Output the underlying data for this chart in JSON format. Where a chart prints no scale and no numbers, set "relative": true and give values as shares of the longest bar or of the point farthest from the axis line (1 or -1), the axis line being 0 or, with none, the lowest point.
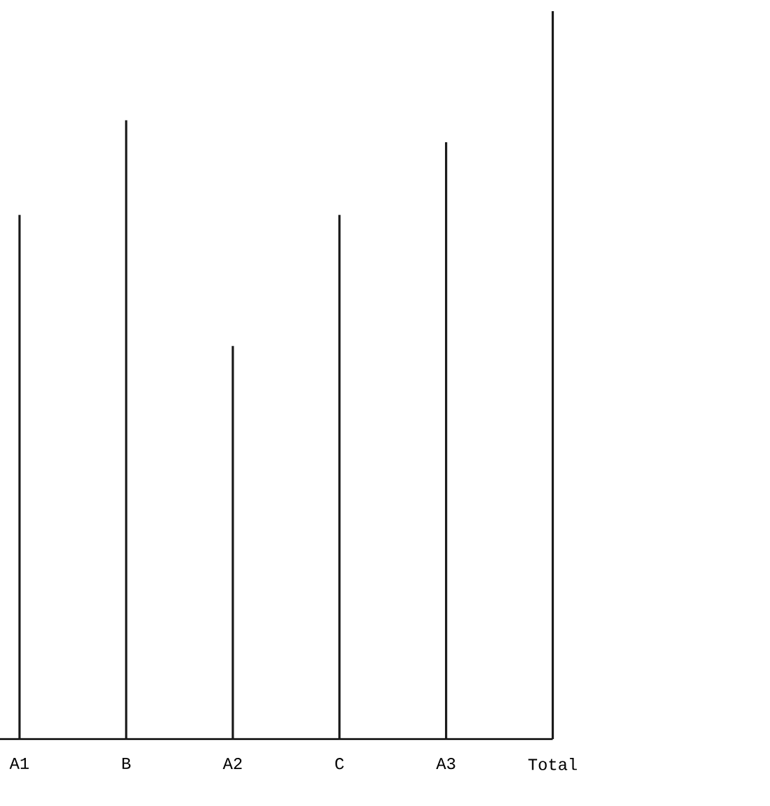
{
  "chart_data": {
    "type": "bar",
    "relative": true,
    "color": "#1a1a1a",
    "categories": [
      "A1",
      "B",
      "A2",
      "C",
      "A3",
      "Total"
    ],
    "values": [
      0.72,
      0.85,
      0.54,
      0.72,
      0.82,
      1
    ]
  }
}
